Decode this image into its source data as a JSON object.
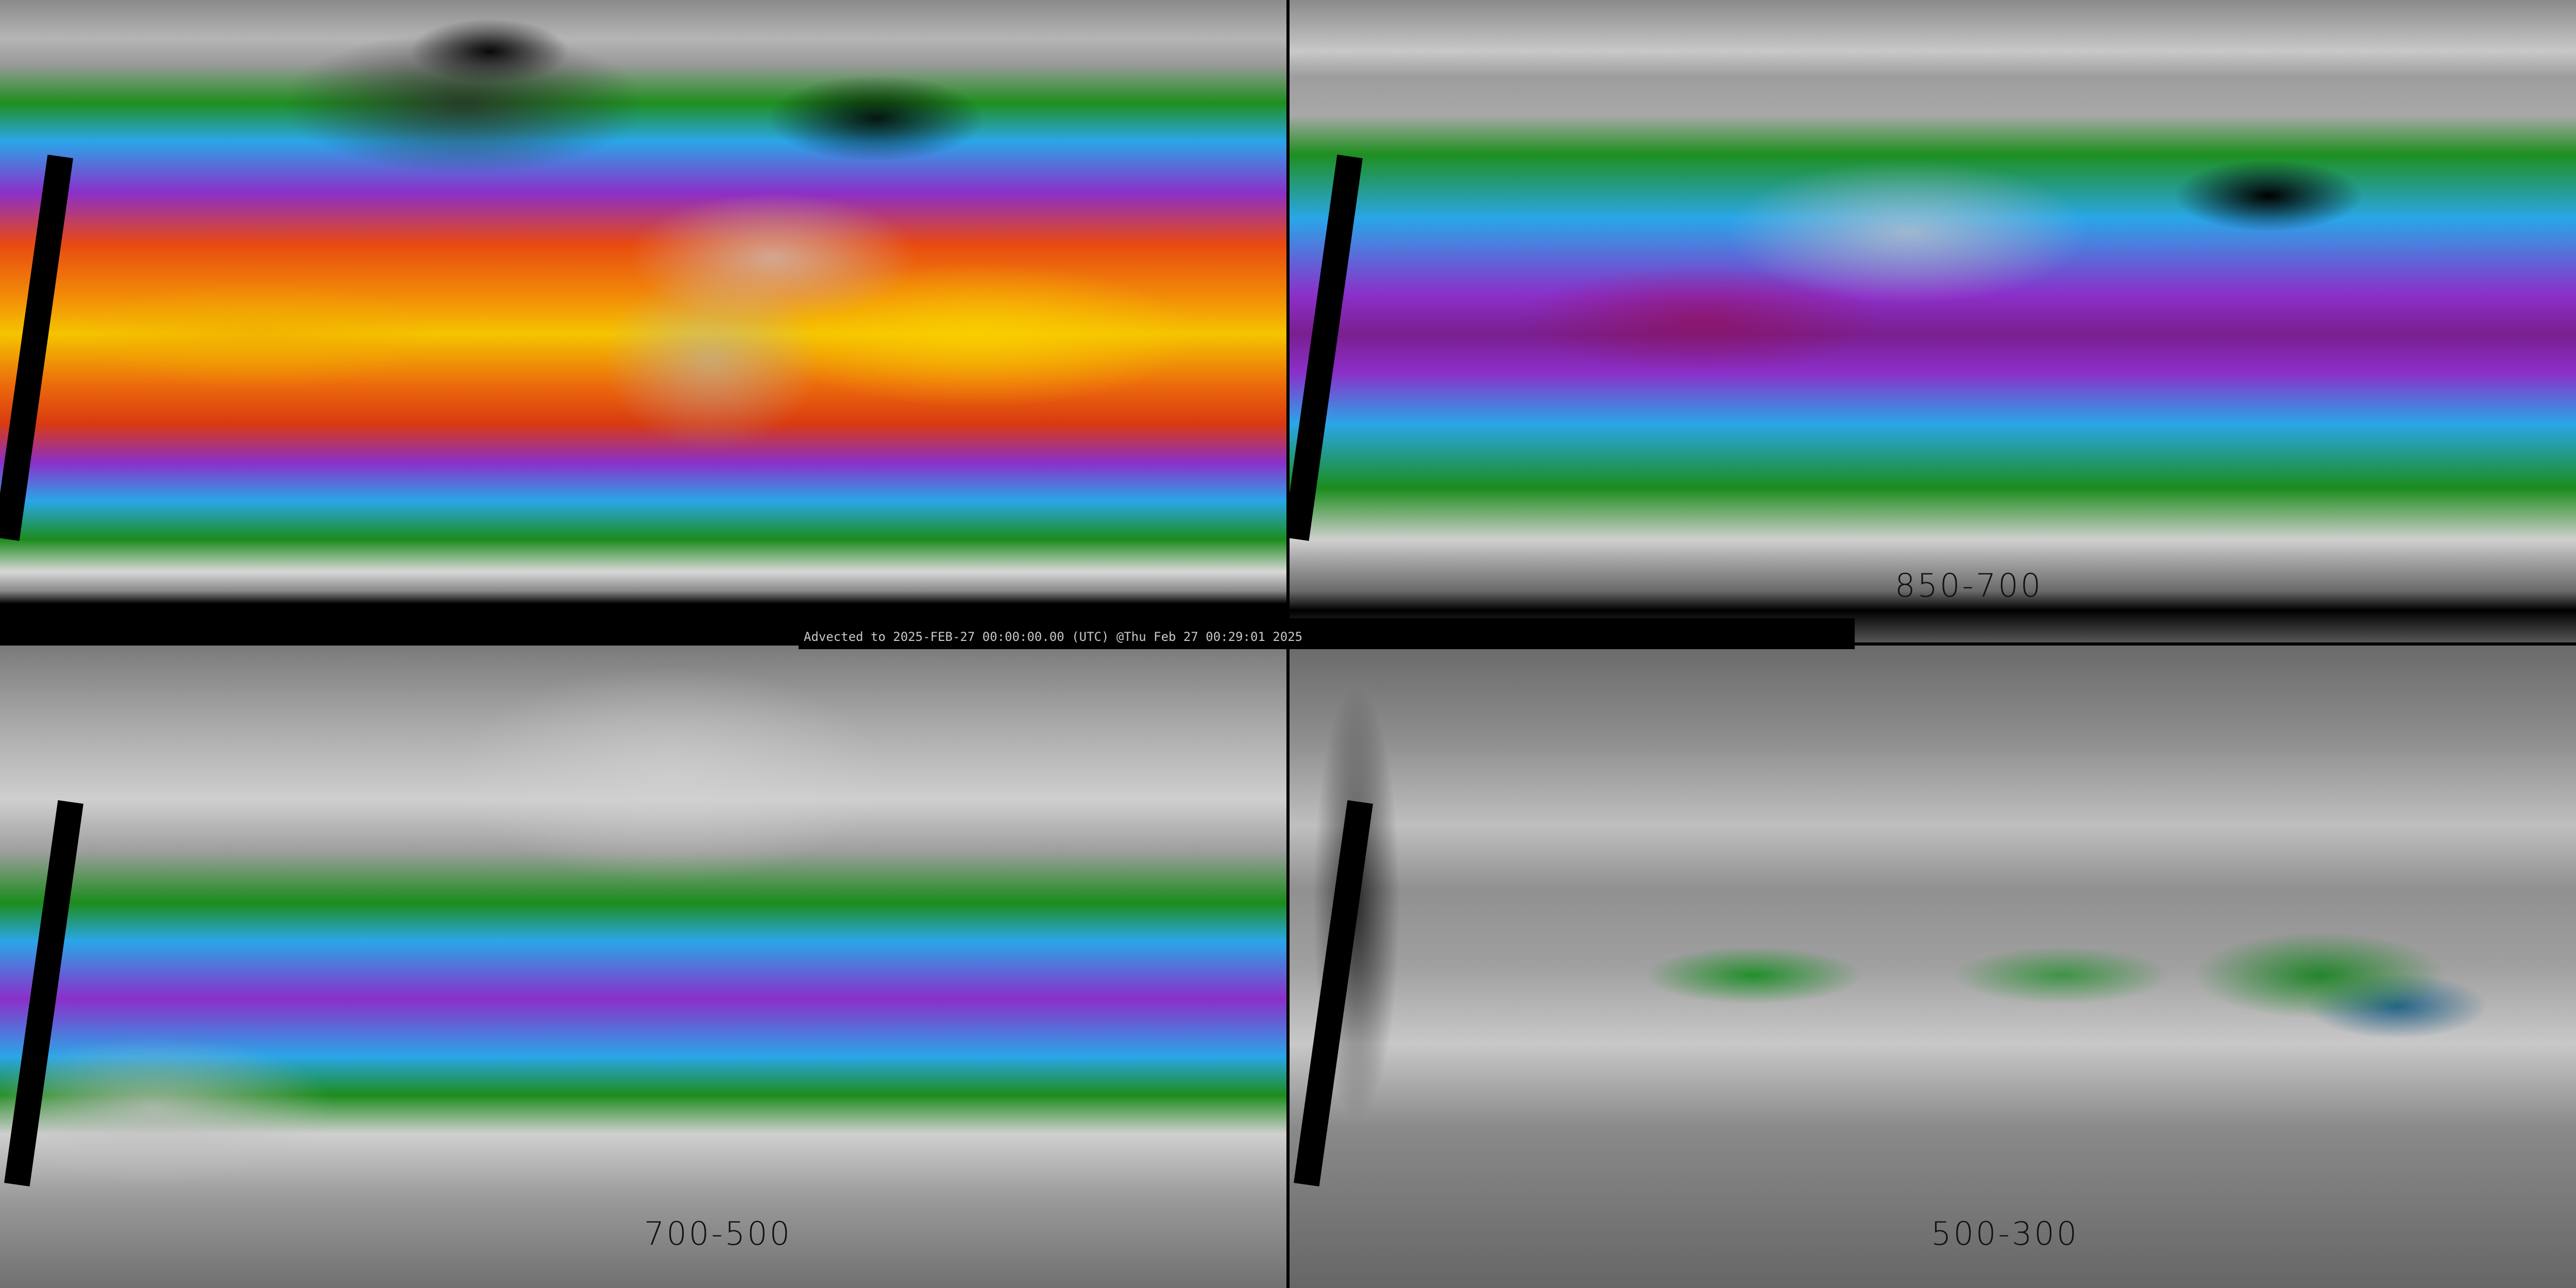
{
  "panels": [
    {
      "id": "sfc-850",
      "label": ""
    },
    {
      "id": "850-700",
      "label": "850-700"
    },
    {
      "id": "700-500",
      "label": "700-500"
    },
    {
      "id": "500-300",
      "label": "500-300"
    }
  ],
  "footer": {
    "advected_text": "Advected to 2025-FEB-27 00:00:00.00 (UTC) @Thu Feb 27 00:29:01 2025"
  },
  "colors": {
    "dry": "#8a8a8a",
    "green": "#1f8f1f",
    "blue": "#2aa6e8",
    "purple": "#8b2fc9",
    "red": "#d83a10",
    "orange": "#f28a08",
    "yellow": "#f5c400",
    "missing": "#000000"
  }
}
